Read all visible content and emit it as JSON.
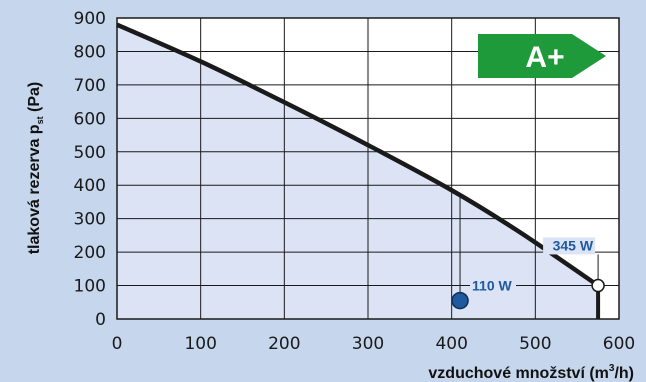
{
  "colors": {
    "background": "#c6d6ec",
    "plot": "#ffffff",
    "fill": "#dbe3f5",
    "grid": "#1a1a1a",
    "curve": "#1a1a1a",
    "badge": "#1f9a3a",
    "annotation": "#1f5a9e",
    "point": "#1f5a9e"
  },
  "chart_data": {
    "type": "line",
    "title": "",
    "xlabel": "vzduchové množství (m³/h)",
    "ylabel": "tlaková rezerva pst (Pa)",
    "xlim": [
      0,
      600
    ],
    "ylim": [
      0,
      900
    ],
    "xticks": [
      "0",
      "100",
      "200",
      "300",
      "400",
      "500",
      "600"
    ],
    "yticks": [
      "0",
      "100",
      "200",
      "300",
      "400",
      "500",
      "600",
      "700",
      "800",
      "900"
    ],
    "grid": true,
    "series": [
      {
        "x": [
          0,
          100,
          200,
          300,
          400,
          480,
          575
        ],
        "y": [
          880,
          770,
          648,
          520,
          385,
          262,
          100
        ]
      }
    ],
    "end_point": {
      "x": 575,
      "y": 100
    },
    "end_point_label": "345 W",
    "operating_point": {
      "x": 410,
      "y": 55
    },
    "operating_point_label": "110 W",
    "operating_point_ref": {
      "x": 410,
      "y": 375
    },
    "energy_class": "A+"
  }
}
